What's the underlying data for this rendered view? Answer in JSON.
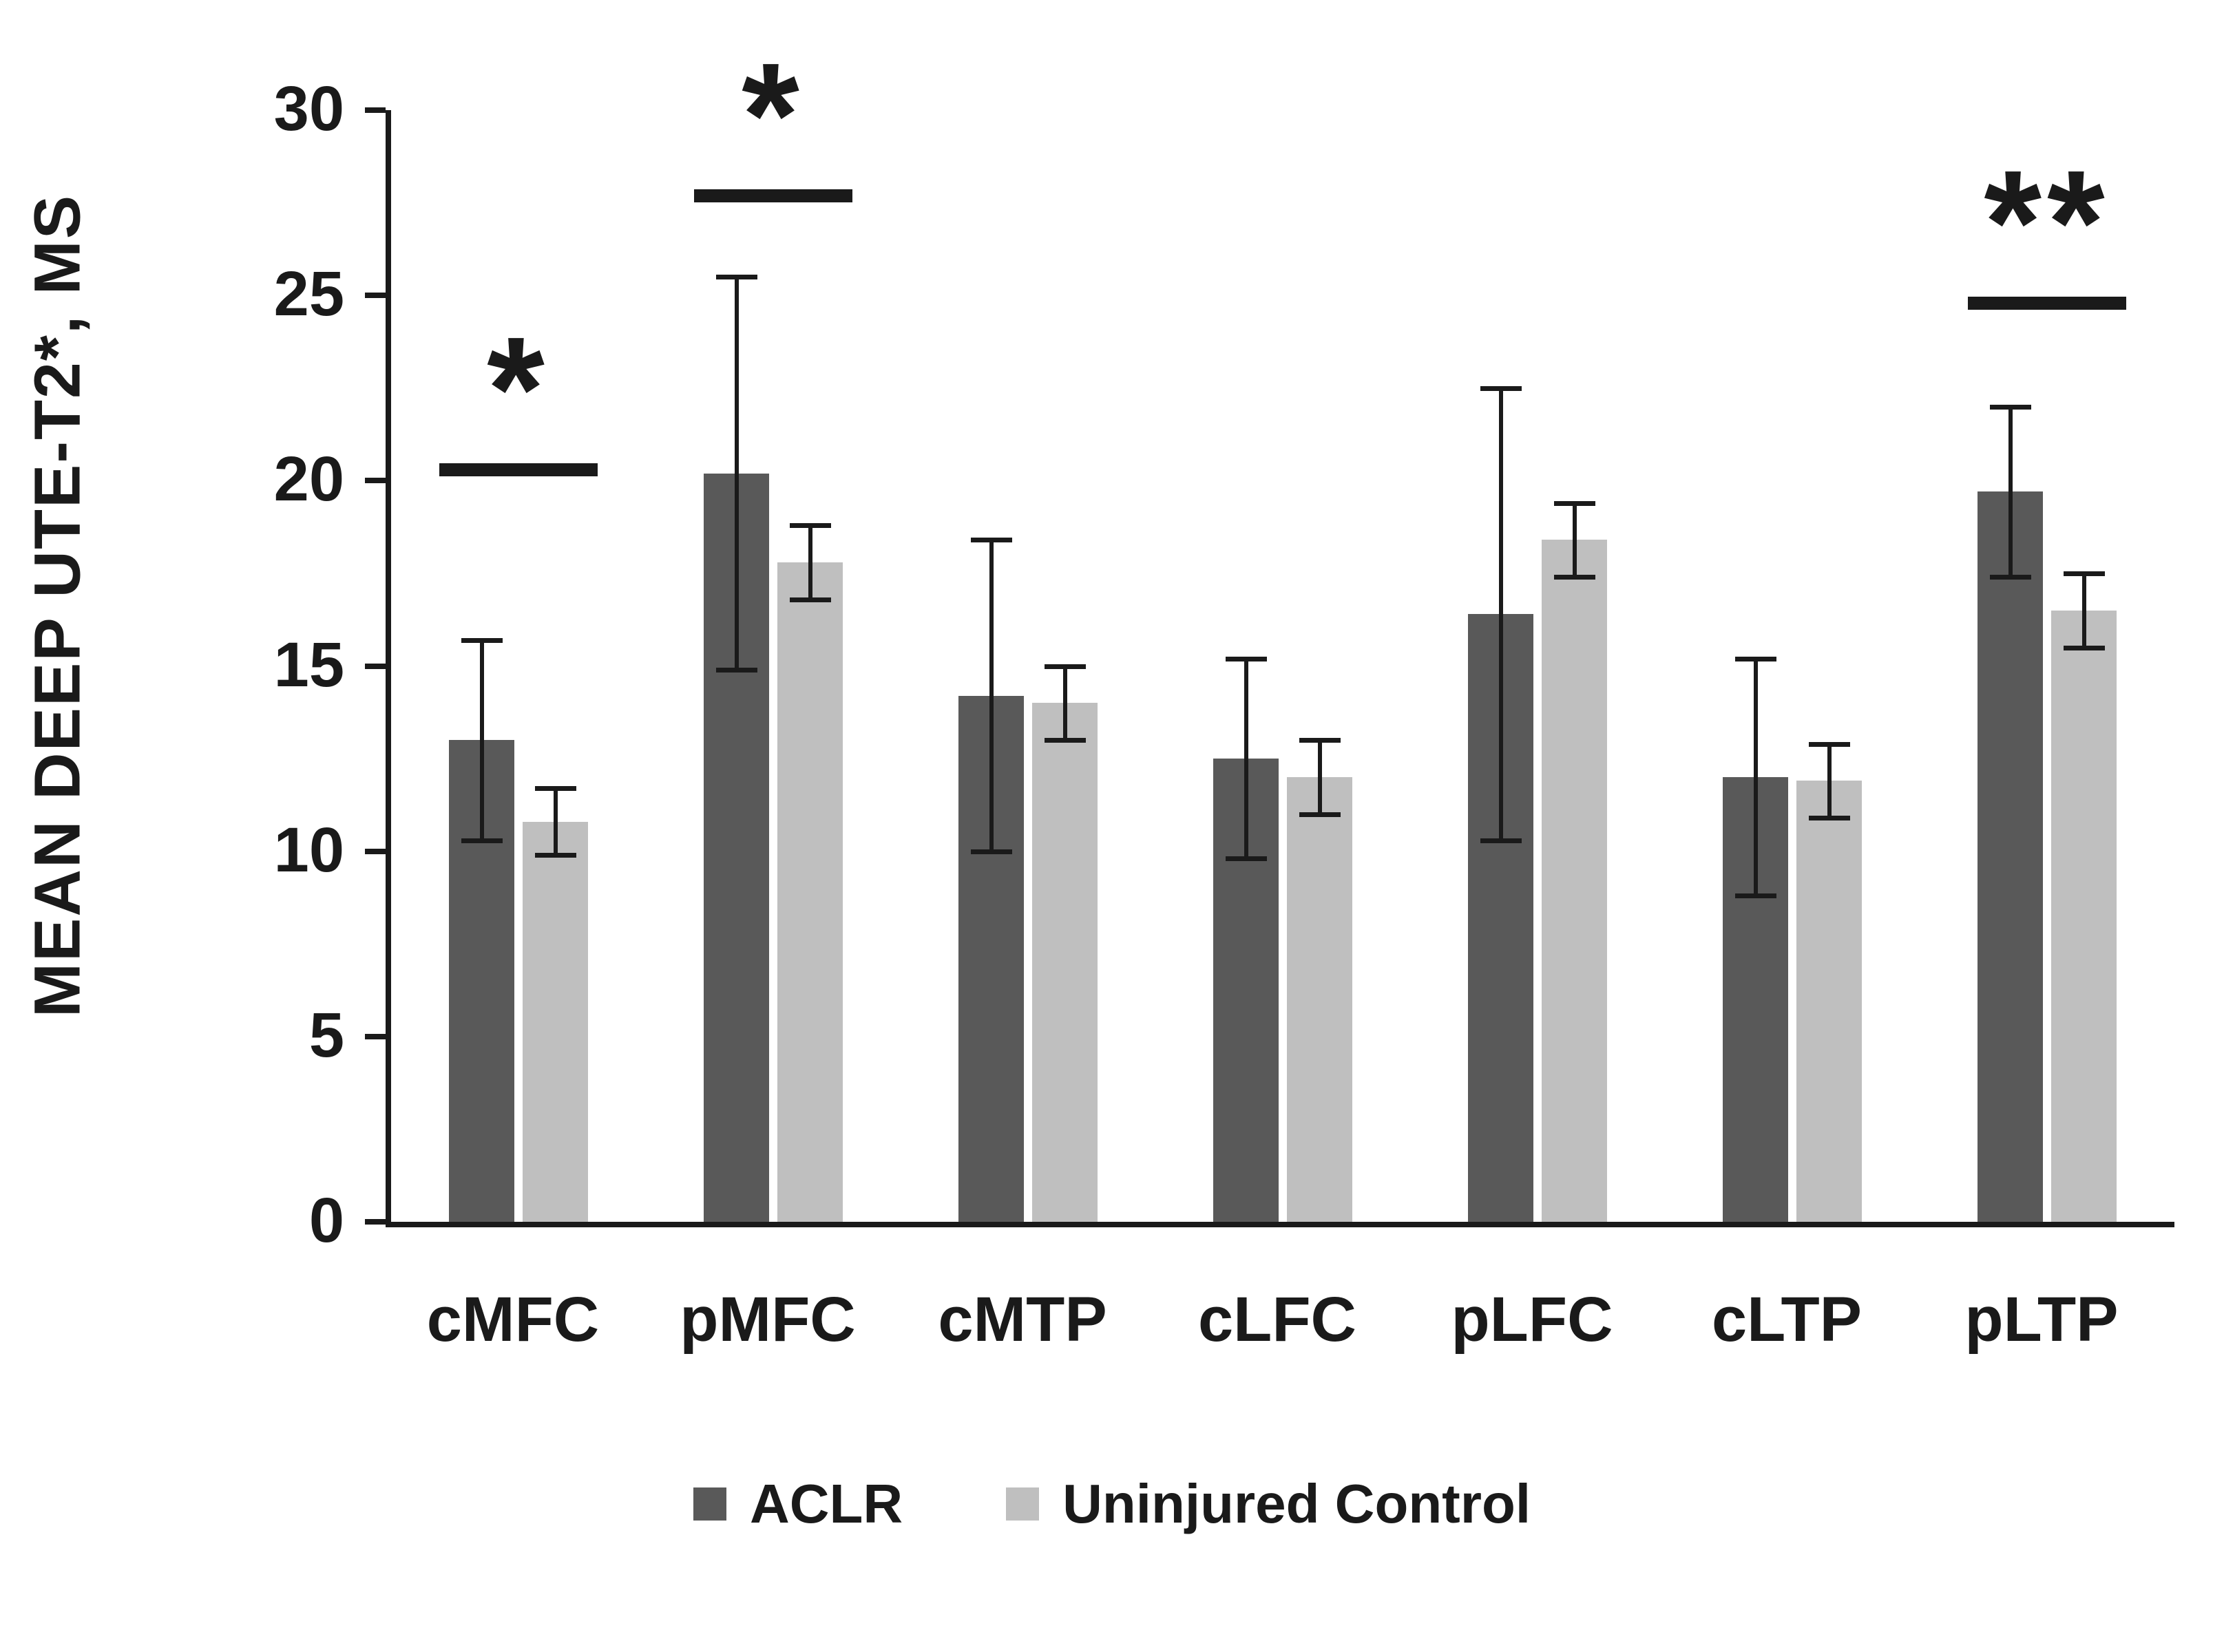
{
  "chart_data": {
    "type": "bar",
    "title": "",
    "ylabel": "MEAN DEEP UTE-T2*, MS",
    "xlabel": "",
    "ylim": [
      0,
      30
    ],
    "yticks": [
      0,
      5,
      10,
      15,
      20,
      25,
      30
    ],
    "grid": false,
    "legend_position": "bottom",
    "categories": [
      "cMFC",
      "pMFC",
      "cMTP",
      "cLFC",
      "pLFC",
      "cLTP",
      "pLTP"
    ],
    "series": [
      {
        "name": "ACLR",
        "color": "#595959",
        "values": [
          13.0,
          20.2,
          14.2,
          12.5,
          16.4,
          12.0,
          19.7
        ],
        "errors": [
          2.7,
          5.3,
          4.2,
          2.7,
          6.1,
          3.2,
          2.3
        ]
      },
      {
        "name": "Uninjured Control",
        "color": "#bfbfbf",
        "values": [
          10.8,
          17.8,
          14.0,
          12.0,
          18.4,
          11.9,
          16.5
        ],
        "errors": [
          0.9,
          1.0,
          1.0,
          1.0,
          1.0,
          1.0,
          1.0
        ]
      }
    ],
    "significance": [
      {
        "category": "cMFC",
        "label": "*",
        "line_y": 20.3
      },
      {
        "category": "pMFC",
        "label": "*",
        "line_y": 27.7
      },
      {
        "category": "pLTP",
        "label": "**",
        "line_y": 24.8
      }
    ]
  },
  "colors": {
    "axis": "#1a1a1a",
    "error_bar": "#1a1a1a",
    "background": "#ffffff"
  }
}
